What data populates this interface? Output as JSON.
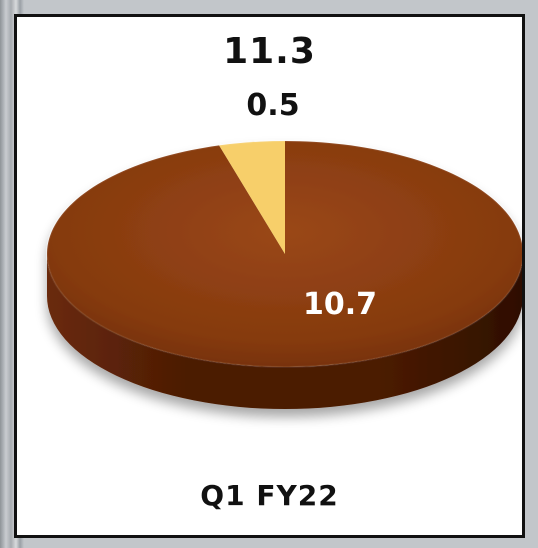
{
  "chart_data": {
    "type": "pie",
    "total_label": "11.3",
    "category_label": "Q1 FY22",
    "slices": [
      {
        "value": 10.7,
        "label": "10.7",
        "color": "#8a3c10"
      },
      {
        "value": 0.5,
        "label": "0.5",
        "color": "#f7cf6a"
      }
    ]
  },
  "colors": {
    "panel_background": "#ffffff",
    "panel_border": "#111111",
    "text": "#111111",
    "large_slice_label": "#ffffff",
    "pie_side_dark": "#3b1405",
    "pie_side_mid": "#5a230a"
  }
}
